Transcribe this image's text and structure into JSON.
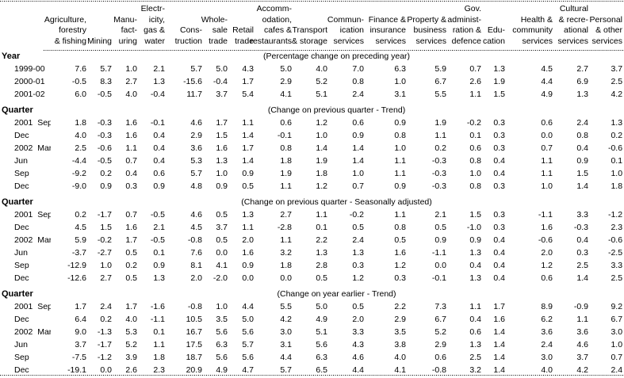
{
  "page": {
    "background": "#ffffff",
    "text_color": "#000000"
  },
  "table": {
    "columns": [
      {
        "id": "agriculture-forestry-fishing",
        "lines": [
          "Agriculture,",
          "forestry",
          "& fishing"
        ]
      },
      {
        "id": "mining",
        "lines": [
          "Mining"
        ]
      },
      {
        "id": "manufacturing",
        "lines": [
          "Manu-",
          "fact-",
          "uring"
        ]
      },
      {
        "id": "electricity-gas-water",
        "lines": [
          "Electr-",
          "icity,",
          "gas &",
          "water"
        ]
      },
      {
        "id": "construction",
        "lines": [
          "Cons-",
          "truction"
        ]
      },
      {
        "id": "wholesale-trade",
        "lines": [
          "Whole-",
          "sale",
          "trade"
        ]
      },
      {
        "id": "retail-trade",
        "lines": [
          "Retail",
          "trade"
        ]
      },
      {
        "id": "accommodation-cafes-restaurants",
        "lines": [
          "Accomm-",
          "odation,",
          "cafes &",
          "restaurants"
        ]
      },
      {
        "id": "transport-storage",
        "lines": [
          "Transport",
          "& storage"
        ]
      },
      {
        "id": "communication-services",
        "lines": [
          "Commun-",
          "ication",
          "services"
        ]
      },
      {
        "id": "finance-insurance-services",
        "lines": [
          "Finance &",
          "insurance",
          "services"
        ]
      },
      {
        "id": "property-business-services",
        "lines": [
          "Property &",
          "business",
          "services"
        ]
      },
      {
        "id": "gov-administration-defence",
        "lines": [
          "Gov.",
          "administ-",
          "ration &",
          "defence"
        ]
      },
      {
        "id": "education",
        "lines": [
          "Edu-",
          "cation"
        ]
      },
      {
        "id": "health-community-services",
        "lines": [
          "Health &",
          "community",
          "services"
        ]
      },
      {
        "id": "cultural-recreational-services",
        "lines": [
          "Cultural",
          "& recre-",
          "ational",
          "services"
        ]
      },
      {
        "id": "personal-other-services",
        "lines": [
          "Personal",
          "& other",
          "services"
        ]
      }
    ],
    "sections": [
      {
        "label": "Year",
        "note": "(Percentage change on preceding year)",
        "rows": [
          {
            "label": "1999-00",
            "values": [
              "7.6",
              "5.7",
              "1.0",
              "2.1",
              "5.7",
              "5.0",
              "4.3",
              "5.0",
              "4.0",
              "7.0",
              "6.3",
              "5.9",
              "0.7",
              "1.3",
              "4.5",
              "2.7",
              "3.7"
            ]
          },
          {
            "label": "2000-01",
            "values": [
              "-0.5",
              "8.3",
              "2.7",
              "1.3",
              "-15.6",
              "-0.4",
              "1.7",
              "2.9",
              "5.2",
              "0.8",
              "1.0",
              "6.7",
              "2.6",
              "1.9",
              "4.4",
              "6.9",
              "2.5"
            ]
          },
          {
            "label": "2001-02",
            "values": [
              "6.0",
              "-0.5",
              "4.0",
              "-0.4",
              "11.7",
              "3.7",
              "5.4",
              "4.1",
              "5.1",
              "2.4",
              "3.1",
              "5.5",
              "1.1",
              "1.5",
              "4.9",
              "1.3",
              "4.2"
            ]
          }
        ]
      },
      {
        "label": "Quarter",
        "note": "(Change on previous quarter - Trend)",
        "rows": [
          {
            "label": "2001  Sep",
            "values": [
              "1.8",
              "-0.3",
              "1.6",
              "-0.1",
              "4.6",
              "1.7",
              "1.1",
              "0.6",
              "1.2",
              "0.6",
              "0.9",
              "1.9",
              "-0.2",
              "0.3",
              "0.6",
              "2.4",
              "1.3"
            ]
          },
          {
            "label": "Dec",
            "values": [
              "4.0",
              "-0.3",
              "1.6",
              "0.4",
              "2.9",
              "1.5",
              "1.4",
              "-0.1",
              "1.0",
              "0.9",
              "0.8",
              "1.1",
              "0.1",
              "0.3",
              "0.0",
              "0.8",
              "0.2"
            ]
          },
          {
            "label": "2002  Mar",
            "values": [
              "2.5",
              "-0.6",
              "1.1",
              "0.4",
              "3.6",
              "1.6",
              "1.7",
              "0.8",
              "1.4",
              "1.4",
              "1.0",
              "0.2",
              "0.6",
              "0.3",
              "0.7",
              "0.4",
              "-0.6"
            ]
          },
          {
            "label": "Jun",
            "values": [
              "-4.4",
              "-0.5",
              "0.7",
              "0.4",
              "5.3",
              "1.3",
              "1.4",
              "1.8",
              "1.9",
              "1.4",
              "1.1",
              "-0.3",
              "0.8",
              "0.4",
              "1.1",
              "0.9",
              "0.1"
            ]
          },
          {
            "label": "Sep",
            "values": [
              "-9.2",
              "0.2",
              "0.4",
              "0.6",
              "5.7",
              "1.0",
              "0.9",
              "1.9",
              "1.8",
              "1.0",
              "1.1",
              "-0.3",
              "1.0",
              "0.4",
              "1.1",
              "1.5",
              "1.0"
            ]
          },
          {
            "label": "Dec",
            "values": [
              "-9.0",
              "0.9",
              "0.3",
              "0.9",
              "4.8",
              "0.9",
              "0.5",
              "1.1",
              "1.2",
              "0.7",
              "0.9",
              "-0.3",
              "0.8",
              "0.3",
              "1.0",
              "1.4",
              "1.8"
            ]
          }
        ]
      },
      {
        "label": "Quarter",
        "note": "(Change on previous quarter - Seasonally adjusted)",
        "rows": [
          {
            "label": "2001  Sep",
            "values": [
              "0.2",
              "-1.7",
              "0.7",
              "-0.5",
              "4.6",
              "0.5",
              "1.3",
              "2.7",
              "1.1",
              "-0.2",
              "1.1",
              "2.1",
              "1.5",
              "0.3",
              "-1.1",
              "3.3",
              "-1.2"
            ]
          },
          {
            "label": "Dec",
            "values": [
              "4.5",
              "1.5",
              "1.6",
              "2.1",
              "4.5",
              "3.7",
              "1.1",
              "-2.8",
              "0.1",
              "0.5",
              "0.8",
              "0.5",
              "-1.0",
              "0.3",
              "1.6",
              "-0.3",
              "2.3"
            ]
          },
          {
            "label": "2002  Mar",
            "values": [
              "5.9",
              "-0.2",
              "1.7",
              "-0.5",
              "-0.8",
              "0.5",
              "2.0",
              "1.1",
              "2.2",
              "2.4",
              "0.5",
              "0.9",
              "0.9",
              "0.4",
              "-0.6",
              "0.4",
              "-0.6"
            ]
          },
          {
            "label": "Jun",
            "values": [
              "-3.7",
              "-2.7",
              "0.5",
              "0.1",
              "7.6",
              "0.0",
              "1.6",
              "3.2",
              "1.3",
              "1.3",
              "1.6",
              "-1.1",
              "1.3",
              "0.4",
              "2.0",
              "0.3",
              "-2.5"
            ]
          },
          {
            "label": "Sep",
            "values": [
              "-12.9",
              "1.0",
              "0.2",
              "0.9",
              "8.1",
              "4.1",
              "0.9",
              "1.8",
              "2.8",
              "0.3",
              "1.2",
              "0.0",
              "0.4",
              "0.4",
              "1.2",
              "2.5",
              "3.3"
            ]
          },
          {
            "label": "Dec",
            "values": [
              "-12.6",
              "2.7",
              "0.5",
              "1.3",
              "2.0",
              "-2.0",
              "0.0",
              "0.0",
              "0.5",
              "1.2",
              "0.3",
              "-0.1",
              "1.3",
              "0.4",
              "0.6",
              "1.4",
              "2.5"
            ]
          }
        ]
      },
      {
        "label": "Quarter",
        "note": "(Change on year earlier - Trend)",
        "rows": [
          {
            "label": "2001  Sep",
            "values": [
              "1.7",
              "2.4",
              "1.7",
              "-1.6",
              "-0.8",
              "1.0",
              "4.4",
              "5.5",
              "5.0",
              "0.5",
              "2.2",
              "7.3",
              "1.1",
              "1.7",
              "8.9",
              "-0.9",
              "9.2"
            ]
          },
          {
            "label": "Dec",
            "values": [
              "6.4",
              "0.2",
              "4.0",
              "-1.1",
              "10.5",
              "3.5",
              "5.0",
              "4.2",
              "4.9",
              "2.0",
              "2.9",
              "6.7",
              "0.4",
              "1.6",
              "6.2",
              "1.1",
              "6.7"
            ]
          },
          {
            "label": "2002  Mar",
            "values": [
              "9.0",
              "-1.3",
              "5.3",
              "0.1",
              "16.7",
              "5.6",
              "5.6",
              "3.0",
              "5.1",
              "3.3",
              "3.5",
              "5.2",
              "0.6",
              "1.4",
              "3.6",
              "3.6",
              "3.0"
            ]
          },
          {
            "label": "Jun",
            "values": [
              "3.7",
              "-1.7",
              "5.2",
              "1.1",
              "17.5",
              "6.3",
              "5.7",
              "3.1",
              "5.6",
              "4.3",
              "3.8",
              "2.9",
              "1.3",
              "1.4",
              "2.4",
              "4.6",
              "1.0"
            ]
          },
          {
            "label": "Sep",
            "values": [
              "-7.5",
              "-1.2",
              "3.9",
              "1.8",
              "18.7",
              "5.6",
              "5.6",
              "4.4",
              "6.3",
              "4.6",
              "4.0",
              "0.6",
              "2.5",
              "1.4",
              "3.0",
              "3.7",
              "0.7"
            ]
          },
          {
            "label": "Dec",
            "values": [
              "-19.1",
              "0.0",
              "2.6",
              "2.3",
              "20.9",
              "4.9",
              "4.7",
              "5.7",
              "6.5",
              "4.4",
              "4.1",
              "-0.8",
              "3.2",
              "1.4",
              "4.0",
              "4.2",
              "2.4"
            ]
          }
        ]
      }
    ]
  }
}
